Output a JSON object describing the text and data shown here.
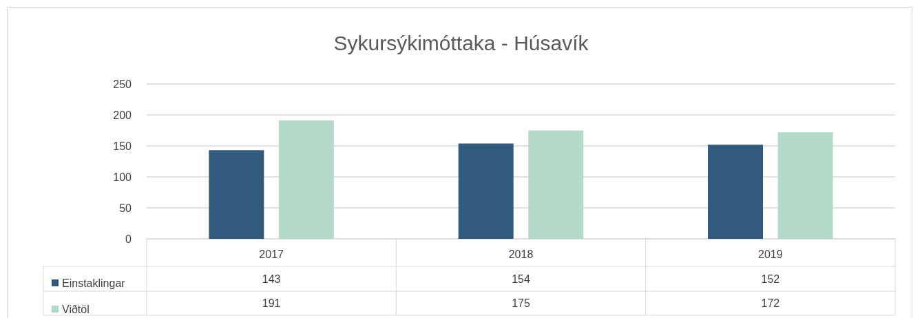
{
  "chart_data": {
    "type": "bar",
    "title": "Sykursýkimóttaka - Húsavík",
    "categories": [
      "2017",
      "2018",
      "2019"
    ],
    "series": [
      {
        "name": "Einstaklingar",
        "color": "#325a7e",
        "values": [
          143,
          154,
          152
        ]
      },
      {
        "name": "Viðtöl",
        "color": "#b3dac8",
        "values": [
          191,
          175,
          172
        ]
      }
    ],
    "ylim": [
      0,
      250
    ],
    "yticks": [
      0,
      50,
      100,
      150,
      200,
      250
    ],
    "grid": "y",
    "legend": "bottom left",
    "data_labels": true
  }
}
